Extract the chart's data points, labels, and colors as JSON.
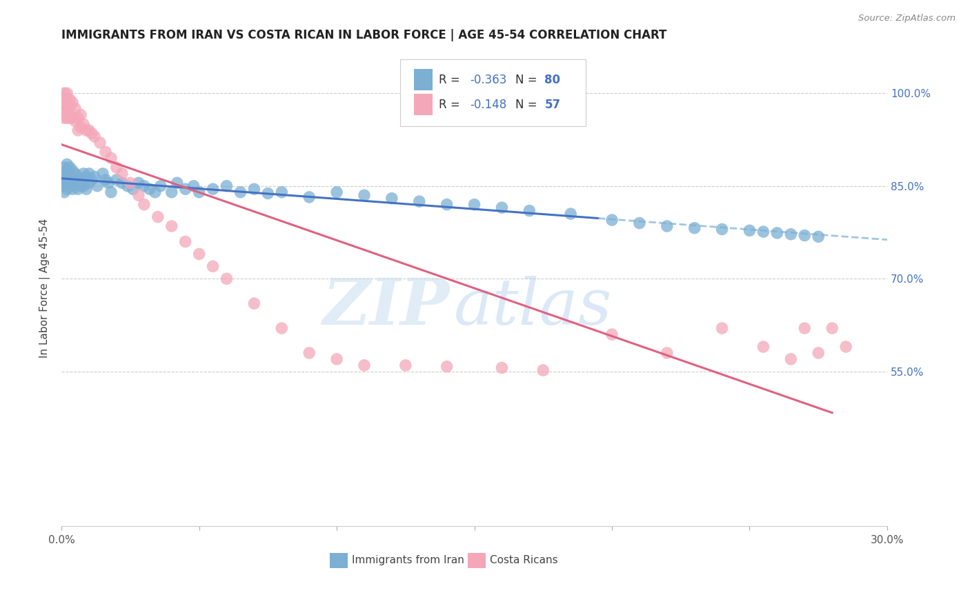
{
  "title": "IMMIGRANTS FROM IRAN VS COSTA RICAN IN LABOR FORCE | AGE 45-54 CORRELATION CHART",
  "source": "Source: ZipAtlas.com",
  "ylabel": "In Labor Force | Age 45-54",
  "xlim": [
    0.0,
    0.3
  ],
  "ylim": [
    0.3,
    1.07
  ],
  "ytick_values": [
    0.55,
    0.7,
    0.85,
    1.0
  ],
  "background_color": "#ffffff",
  "watermark_zip": "ZIP",
  "watermark_atlas": "atlas",
  "color_iran": "#7bafd4",
  "color_costa": "#f4a7b9",
  "color_iran_line_solid": "#4472c4",
  "color_iran_line_dash": "#7bafd4",
  "color_costa_line": "#e06080",
  "iran_x": [
    0.001,
    0.001,
    0.001,
    0.001,
    0.001,
    0.002,
    0.002,
    0.002,
    0.002,
    0.002,
    0.003,
    0.003,
    0.003,
    0.003,
    0.004,
    0.004,
    0.004,
    0.004,
    0.005,
    0.005,
    0.005,
    0.006,
    0.006,
    0.006,
    0.007,
    0.007,
    0.008,
    0.008,
    0.009,
    0.009,
    0.01,
    0.01,
    0.011,
    0.012,
    0.013,
    0.015,
    0.016,
    0.017,
    0.018,
    0.02,
    0.022,
    0.024,
    0.026,
    0.028,
    0.03,
    0.032,
    0.034,
    0.036,
    0.04,
    0.042,
    0.045,
    0.048,
    0.05,
    0.055,
    0.06,
    0.065,
    0.07,
    0.075,
    0.08,
    0.09,
    0.1,
    0.11,
    0.12,
    0.13,
    0.14,
    0.15,
    0.16,
    0.17,
    0.185,
    0.2,
    0.21,
    0.22,
    0.23,
    0.24,
    0.25,
    0.255,
    0.26,
    0.265,
    0.27,
    0.275
  ],
  "iran_y": [
    0.88,
    0.87,
    0.86,
    0.85,
    0.84,
    0.885,
    0.875,
    0.865,
    0.855,
    0.845,
    0.88,
    0.87,
    0.86,
    0.85,
    0.875,
    0.865,
    0.855,
    0.845,
    0.87,
    0.86,
    0.85,
    0.865,
    0.855,
    0.845,
    0.86,
    0.85,
    0.87,
    0.85,
    0.865,
    0.845,
    0.87,
    0.855,
    0.86,
    0.865,
    0.85,
    0.87,
    0.86,
    0.855,
    0.84,
    0.86,
    0.855,
    0.85,
    0.845,
    0.855,
    0.85,
    0.845,
    0.84,
    0.85,
    0.84,
    0.855,
    0.845,
    0.85,
    0.84,
    0.845,
    0.85,
    0.84,
    0.845,
    0.838,
    0.84,
    0.832,
    0.84,
    0.835,
    0.83,
    0.825,
    0.82,
    0.82,
    0.815,
    0.81,
    0.805,
    0.795,
    0.79,
    0.785,
    0.782,
    0.78,
    0.778,
    0.776,
    0.774,
    0.772,
    0.77,
    0.768
  ],
  "costa_x": [
    0.001,
    0.001,
    0.001,
    0.001,
    0.001,
    0.002,
    0.002,
    0.002,
    0.002,
    0.003,
    0.003,
    0.003,
    0.004,
    0.004,
    0.005,
    0.005,
    0.006,
    0.006,
    0.007,
    0.007,
    0.008,
    0.009,
    0.01,
    0.011,
    0.012,
    0.014,
    0.016,
    0.018,
    0.02,
    0.022,
    0.025,
    0.028,
    0.03,
    0.035,
    0.04,
    0.045,
    0.05,
    0.055,
    0.06,
    0.07,
    0.08,
    0.09,
    0.1,
    0.11,
    0.125,
    0.14,
    0.16,
    0.175,
    0.2,
    0.22,
    0.24,
    0.255,
    0.265,
    0.27,
    0.275,
    0.28,
    0.285
  ],
  "costa_y": [
    1.0,
    0.99,
    0.98,
    0.97,
    0.96,
    1.0,
    0.99,
    0.975,
    0.96,
    0.99,
    0.975,
    0.96,
    0.985,
    0.96,
    0.975,
    0.955,
    0.96,
    0.94,
    0.965,
    0.945,
    0.95,
    0.94,
    0.94,
    0.935,
    0.93,
    0.92,
    0.905,
    0.895,
    0.88,
    0.87,
    0.855,
    0.835,
    0.82,
    0.8,
    0.785,
    0.76,
    0.74,
    0.72,
    0.7,
    0.66,
    0.62,
    0.58,
    0.57,
    0.56,
    0.56,
    0.558,
    0.556,
    0.552,
    0.61,
    0.58,
    0.62,
    0.59,
    0.57,
    0.62,
    0.58,
    0.62,
    0.59
  ]
}
